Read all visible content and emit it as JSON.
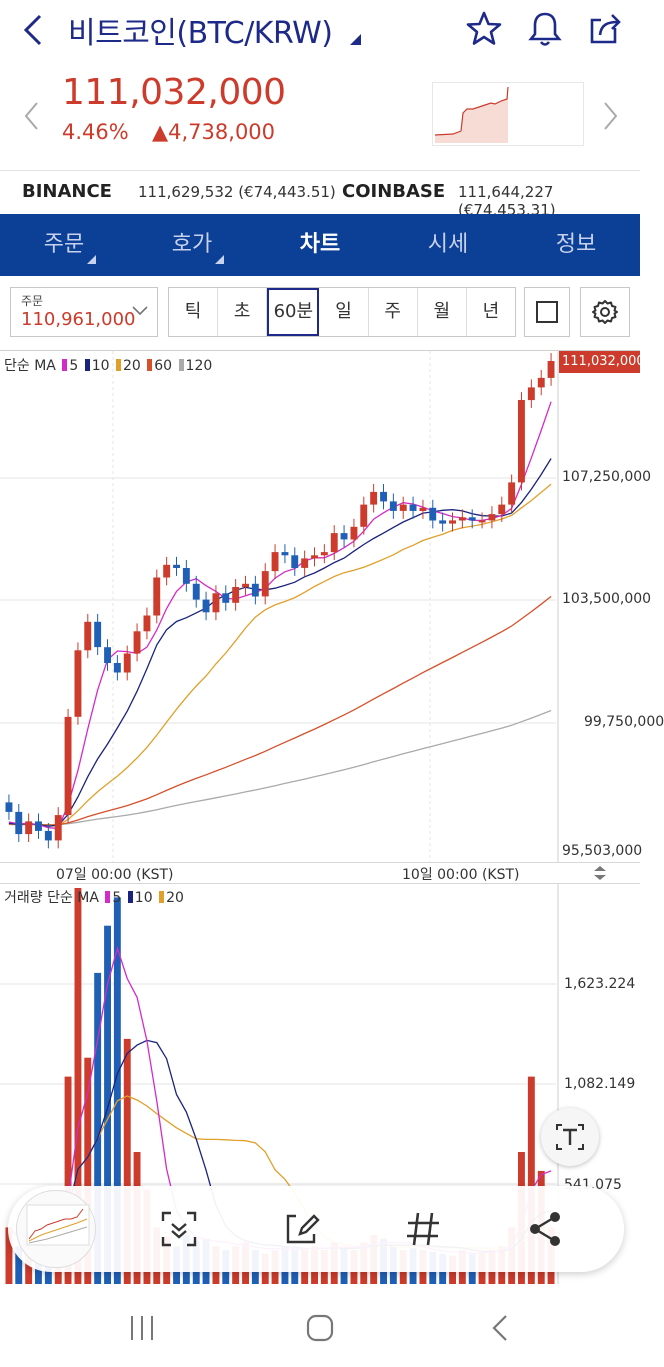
{
  "header": {
    "title": "비트코인(BTC/KRW)",
    "icons": [
      "back-icon",
      "star-icon",
      "bell-icon",
      "share-icon"
    ]
  },
  "price": {
    "current": "111,032,000",
    "change_pct": "4.46%",
    "change_abs": "▲4,738,000",
    "color": "#cc3b2b"
  },
  "exchanges": [
    {
      "name": "BINANCE",
      "value": "111,629,532 (€74,443.51)"
    },
    {
      "name": "COINBASE",
      "value": "111,644,227 (€74,453.31)"
    }
  ],
  "tabs": [
    {
      "label": "주문",
      "active": false
    },
    {
      "label": "호가",
      "active": false
    },
    {
      "label": "차트",
      "active": true
    },
    {
      "label": "시세",
      "active": false
    },
    {
      "label": "정보",
      "active": false
    }
  ],
  "toolbar": {
    "order_label": "주문",
    "order_value": "110,961,000",
    "periods": [
      "틱",
      "초",
      "60분",
      "일",
      "주",
      "월",
      "년"
    ],
    "active_period": "60분"
  },
  "chart_data": [
    {
      "type": "candlestick",
      "legend": {
        "prefix": "단순 MA",
        "series": [
          {
            "name": "5",
            "color": "#d42bc8"
          },
          {
            "name": "10",
            "color": "#1a237e"
          },
          {
            "name": "20",
            "color": "#e0a02b"
          },
          {
            "name": "60",
            "color": "#d6502a"
          },
          {
            "name": "120",
            "color": "#aaaaaa"
          }
        ]
      },
      "y_ticks": [
        "107,250,000",
        "103,500,000",
        "99,750,000",
        "95,503,000"
      ],
      "current_label": "111,032,000",
      "ylim": [
        95503000,
        111032000
      ],
      "x_ticks": [
        "07일 00:00 (KST)",
        "10일 00:00 (KST)"
      ],
      "close": [
        96800000,
        96100000,
        96500000,
        96200000,
        95900000,
        96700000,
        99800000,
        101900000,
        102800000,
        102000000,
        101500000,
        101200000,
        101800000,
        102500000,
        103000000,
        104200000,
        104600000,
        104500000,
        104000000,
        103500000,
        103100000,
        103700000,
        103400000,
        103900000,
        104000000,
        103600000,
        104400000,
        105000000,
        104900000,
        104500000,
        104800000,
        104900000,
        105000000,
        105600000,
        105400000,
        105800000,
        106500000,
        106900000,
        106600000,
        106300000,
        106500000,
        106300000,
        106400000,
        106000000,
        105900000,
        106000000,
        106100000,
        106000000,
        106000000,
        106200000,
        106500000,
        107200000,
        109800000,
        110200000,
        110500000,
        111032000
      ]
    },
    {
      "type": "bar",
      "legend": {
        "prefix": "거래량 단순 MA",
        "series": [
          {
            "name": "5",
            "color": "#d42bc8"
          },
          {
            "name": "10",
            "color": "#1a237e"
          },
          {
            "name": "20",
            "color": "#e0a02b"
          }
        ]
      },
      "y_ticks": [
        "1,623.224",
        "1,082.149",
        "541.075"
      ],
      "ylim": [
        0,
        2100
      ],
      "values": [
        300,
        200,
        230,
        260,
        250,
        420,
        1100,
        2100,
        1200,
        1650,
        1900,
        2050,
        1300,
        700,
        500,
        300,
        250,
        200,
        260,
        230,
        240,
        200,
        180,
        200,
        220,
        180,
        160,
        180,
        200,
        190,
        180,
        200,
        180,
        220,
        190,
        180,
        220,
        260,
        240,
        200,
        180,
        190,
        180,
        170,
        160,
        150,
        180,
        160,
        170,
        180,
        200,
        300,
        700,
        1100,
        600,
        300
      ]
    }
  ],
  "overlay_icons": [
    "scan-icon",
    "edit-icon",
    "hashtag-icon",
    "share-icon"
  ],
  "nav_icons": [
    "recent-apps-icon",
    "home-icon",
    "back-icon"
  ]
}
